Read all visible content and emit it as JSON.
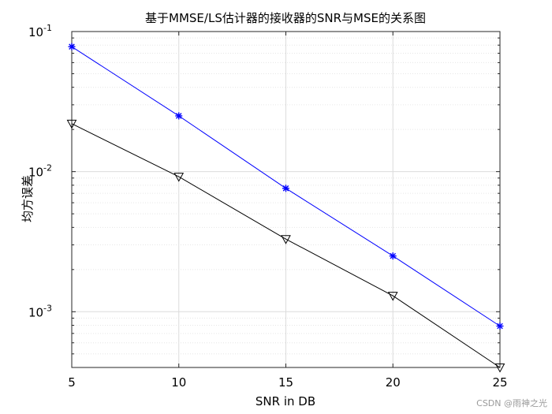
{
  "chart_data": {
    "type": "line",
    "title": "基于MMSE/LS估计器的接收器的SNR与MSE的关系图",
    "xlabel": "SNR in DB",
    "ylabel": "均方误差",
    "x": [
      5,
      10,
      15,
      20,
      25
    ],
    "xlim": [
      5,
      25
    ],
    "xticks": [
      "5",
      "10",
      "15",
      "20",
      "25"
    ],
    "yscale": "log",
    "ylim": [
      0.0004,
      0.1
    ],
    "yticks": [
      {
        "value": 0.1,
        "base": "10",
        "exp": "-1"
      },
      {
        "value": 0.01,
        "base": "10",
        "exp": "-2"
      },
      {
        "value": 0.001,
        "base": "10",
        "exp": "-3"
      }
    ],
    "grid": true,
    "series": [
      {
        "values": [
          0.078,
          0.025,
          0.0076,
          0.0025,
          0.00079
        ],
        "color": "#0000ff",
        "marker": "asterisk"
      },
      {
        "values": [
          0.022,
          0.0092,
          0.0033,
          0.0013,
          0.0004
        ],
        "color": "#000000",
        "marker": "triangle-down"
      }
    ]
  },
  "watermark": "CSDN @雨神之光"
}
